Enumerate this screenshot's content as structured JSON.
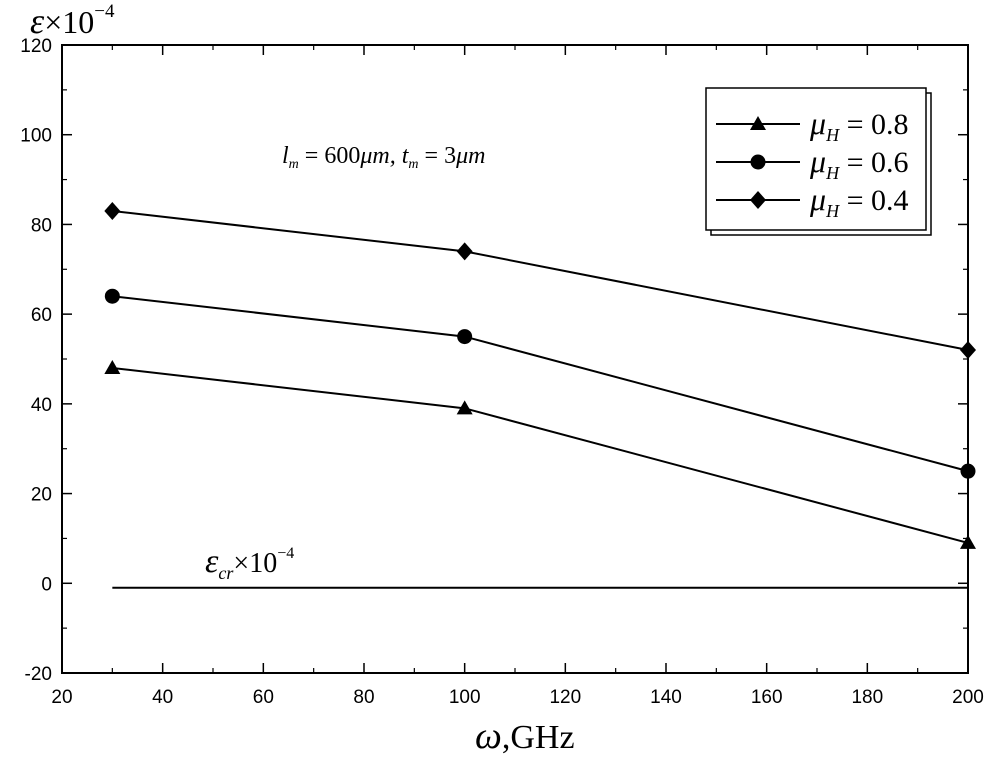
{
  "chart_data": {
    "type": "line",
    "title": "",
    "ylabel": {
      "symbol": "ε",
      "times": "×10",
      "exp": "−4"
    },
    "xlabel": {
      "symbol": "ω",
      "unit": ",GHz"
    },
    "xlim": [
      20,
      200
    ],
    "ylim": [
      -20,
      120
    ],
    "xticks": [
      20,
      40,
      60,
      80,
      100,
      120,
      140,
      160,
      180,
      200
    ],
    "yticks": [
      -20,
      0,
      20,
      40,
      60,
      80,
      100,
      120
    ],
    "annotation": {
      "l_sym": "l",
      "l_sub": "m",
      "l_val": " = 600",
      "mu": "μ",
      "m1": "m, ",
      "t_sym": "t",
      "t_sub": "m",
      "t_val": " = 3",
      "m2": "m"
    },
    "critical": {
      "value": -1,
      "x": [
        30,
        200
      ],
      "label": {
        "symbol": "ε",
        "sub": "cr",
        "times": "×10",
        "exp": "−4"
      }
    },
    "legend_position": "top-right",
    "series": [
      {
        "name": {
          "symbol": "μ",
          "sub": "H",
          "val": " = 0.8"
        },
        "marker": "triangle",
        "x": [
          30,
          100,
          200
        ],
        "y": [
          48,
          39,
          9
        ]
      },
      {
        "name": {
          "symbol": "μ",
          "sub": "H",
          "val": " = 0.6"
        },
        "marker": "circle",
        "x": [
          30,
          100,
          200
        ],
        "y": [
          64,
          55,
          25
        ]
      },
      {
        "name": {
          "symbol": "μ",
          "sub": "H",
          "val": " = 0.4"
        },
        "marker": "diamond",
        "x": [
          30,
          100,
          200
        ],
        "y": [
          83,
          74,
          52
        ]
      }
    ]
  }
}
